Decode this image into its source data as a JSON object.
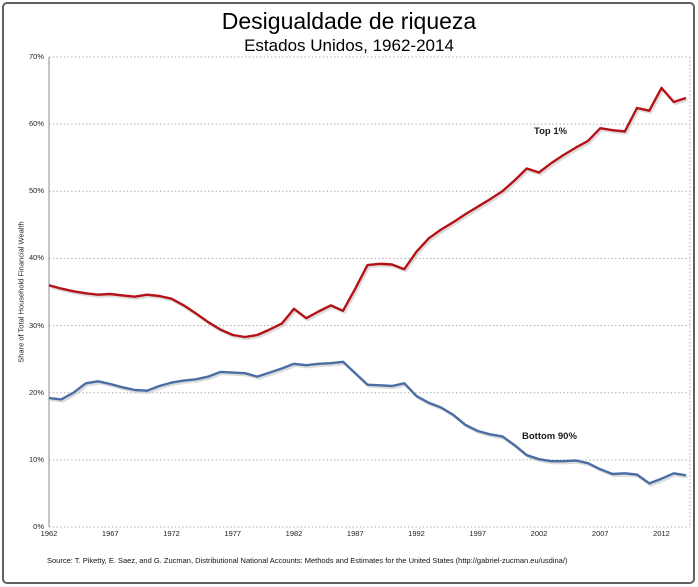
{
  "chart_data": {
    "type": "line",
    "title": "Desigualdade de riqueza",
    "subtitle": "Estados Unidos, 1962-2014",
    "ylabel": "Share of Total Household Financial Wealth",
    "source": "Source: T. Piketty, E. Saez, and G. Zucman,  Distributional National Accounts: Methods and Estimates for the United States (http://gabriel-zucman.eu/usdina/)",
    "xlim": [
      1962,
      2014
    ],
    "ylim": [
      0,
      70
    ],
    "xticks": [
      1962,
      1967,
      1972,
      1977,
      1982,
      1987,
      1992,
      1997,
      2002,
      2007,
      2012
    ],
    "yticks": [
      0,
      10,
      20,
      30,
      40,
      50,
      60,
      70
    ],
    "ytick_suffix": "%",
    "grid": "horizontal-dotted",
    "legend_position": "inline-labels",
    "x": [
      1962,
      1963,
      1964,
      1965,
      1966,
      1967,
      1968,
      1969,
      1970,
      1971,
      1972,
      1973,
      1974,
      1975,
      1976,
      1977,
      1978,
      1979,
      1980,
      1981,
      1982,
      1983,
      1984,
      1985,
      1986,
      1987,
      1988,
      1989,
      1990,
      1991,
      1992,
      1993,
      1994,
      1995,
      1996,
      1997,
      1998,
      1999,
      2000,
      2001,
      2002,
      2003,
      2004,
      2005,
      2006,
      2007,
      2008,
      2009,
      2010,
      2011,
      2012,
      2013,
      2014
    ],
    "series": [
      {
        "name": "Top 1%",
        "color": "#b41216",
        "values": [
          36.0,
          35.5,
          35.1,
          34.8,
          34.6,
          34.7,
          34.5,
          34.3,
          34.6,
          34.4,
          34.0,
          33.0,
          31.8,
          30.5,
          29.4,
          28.6,
          28.3,
          28.6,
          29.4,
          30.3,
          32.5,
          31.1,
          32.1,
          33.0,
          32.2,
          35.5,
          39.0,
          39.2,
          39.1,
          38.4,
          41.0,
          43.0,
          44.3,
          45.4,
          46.6,
          47.7,
          48.8,
          50.0,
          51.6,
          53.4,
          52.8,
          54.2,
          55.4,
          56.5,
          57.5,
          59.4,
          59.1,
          58.9,
          62.4,
          62.0,
          65.4,
          63.3,
          63.9
        ]
      },
      {
        "name": "Bottom 90%",
        "color": "#4a6da3",
        "values": [
          19.2,
          19.0,
          20.0,
          21.4,
          21.7,
          21.3,
          20.8,
          20.4,
          20.3,
          21.0,
          21.5,
          21.8,
          22.0,
          22.4,
          23.1,
          23.0,
          22.9,
          22.4,
          23.0,
          23.6,
          24.3,
          24.1,
          24.3,
          24.4,
          24.6,
          22.9,
          21.2,
          21.1,
          21.0,
          21.4,
          19.5,
          18.5,
          17.8,
          16.7,
          15.2,
          14.3,
          13.8,
          13.5,
          12.2,
          10.7,
          10.1,
          9.8,
          9.8,
          9.9,
          9.5,
          8.6,
          7.9,
          8.0,
          7.8,
          6.5,
          7.2,
          8.0,
          7.7
        ]
      }
    ],
    "colors": {
      "grid": "#ababab",
      "axis": "#8f8f8f",
      "frame": "#606060",
      "shadow": "#c9c9c9"
    }
  }
}
